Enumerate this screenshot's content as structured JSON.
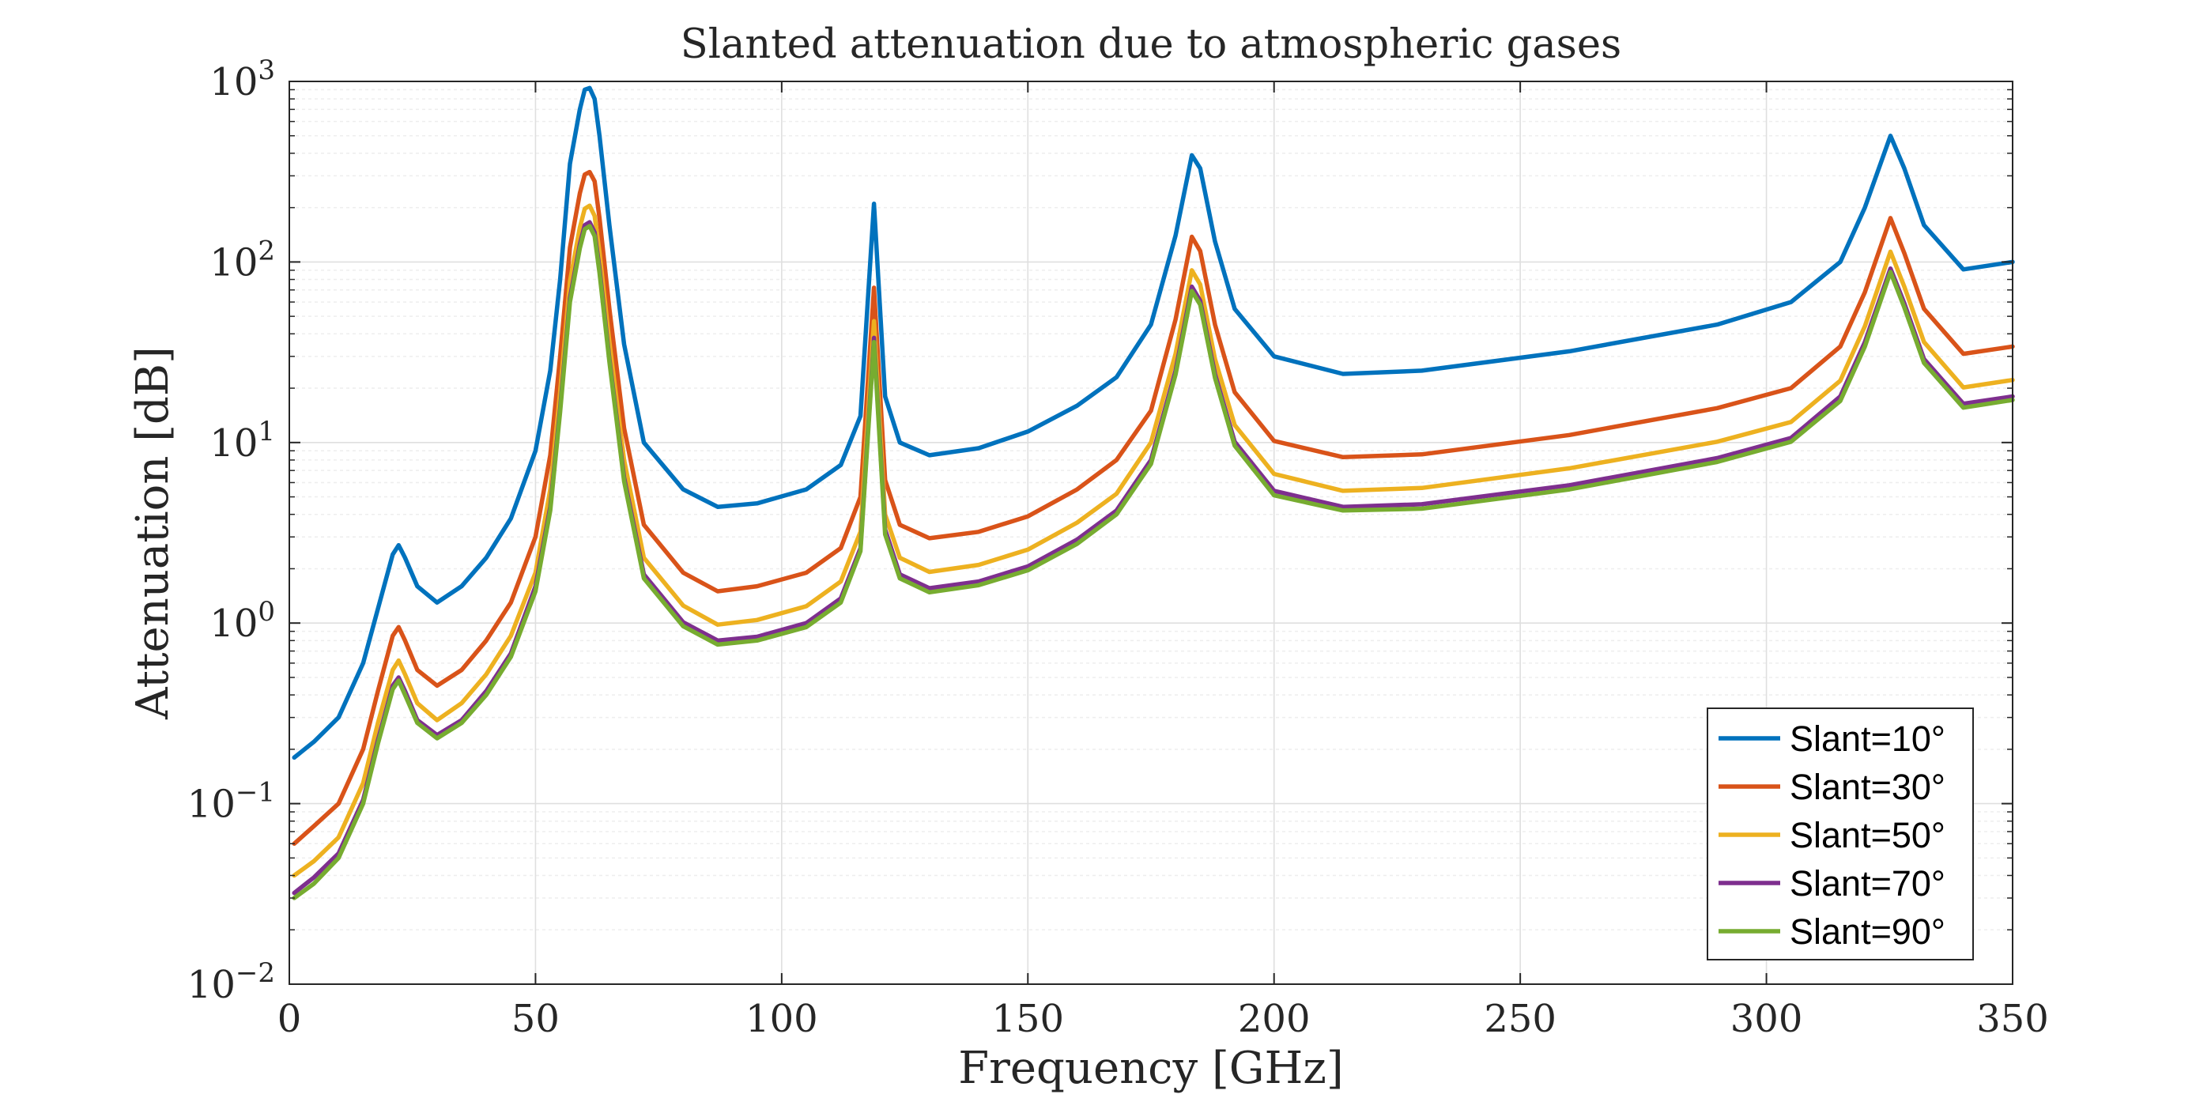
{
  "chart_data": {
    "type": "line",
    "title": "Slanted attenuation due to atmospheric gases",
    "xlabel": "Frequency [GHz]",
    "ylabel": "Attenuation [dB]",
    "xlim": [
      0,
      350
    ],
    "ylim": [
      0.01,
      1000
    ],
    "yscale": "log",
    "grid": true,
    "minor_grid": true,
    "legend_position": "bottom-right",
    "xticks": [
      0,
      50,
      100,
      150,
      200,
      250,
      300,
      350
    ],
    "xtick_labels": [
      "0",
      "50",
      "100",
      "150",
      "200",
      "250",
      "300",
      "350"
    ],
    "yticks": [
      0.01,
      0.1,
      1,
      10,
      100,
      1000
    ],
    "ytick_labels": [
      {
        "base": "10",
        "exp": "−2"
      },
      {
        "base": "10",
        "exp": "−1"
      },
      {
        "base": "10",
        "exp": "0"
      },
      {
        "base": "10",
        "exp": "1"
      },
      {
        "base": "10",
        "exp": "2"
      },
      {
        "base": "10",
        "exp": "3"
      }
    ],
    "x": [
      1,
      5,
      10,
      15,
      18,
      21,
      22.2,
      23.5,
      26,
      30,
      35,
      40,
      45,
      50,
      53,
      55,
      57,
      59,
      60,
      61,
      62,
      63,
      65,
      68,
      72,
      80,
      87,
      95,
      105,
      112,
      116,
      118.75,
      121,
      124,
      130,
      140,
      150,
      160,
      168,
      175,
      180,
      183.3,
      185,
      188,
      192,
      200,
      214,
      230,
      260,
      290,
      305,
      315,
      320,
      325.2,
      328,
      332,
      340,
      350
    ],
    "series": [
      {
        "name": "Slant=10°",
        "color": "#0072BD",
        "values": [
          0.18,
          0.22,
          0.3,
          0.6,
          1.2,
          2.4,
          2.7,
          2.3,
          1.6,
          1.3,
          1.6,
          2.3,
          3.8,
          9,
          25,
          80,
          350,
          700,
          900,
          920,
          800,
          500,
          160,
          35,
          10,
          5.5,
          4.4,
          4.6,
          5.5,
          7.5,
          14,
          210,
          18,
          10,
          8.5,
          9.3,
          11.5,
          16,
          23,
          45,
          140,
          390,
          330,
          130,
          55,
          30,
          24,
          25,
          32,
          45,
          60,
          100,
          200,
          500,
          330,
          160,
          91,
          100
        ]
      },
      {
        "name": "Slant=30°",
        "color": "#D95319",
        "values": [
          0.06,
          0.075,
          0.1,
          0.2,
          0.42,
          0.85,
          0.95,
          0.8,
          0.55,
          0.45,
          0.55,
          0.8,
          1.3,
          3,
          8.5,
          30,
          120,
          240,
          305,
          315,
          280,
          175,
          55,
          12,
          3.5,
          1.9,
          1.5,
          1.6,
          1.9,
          2.6,
          5,
          72,
          6.2,
          3.5,
          2.95,
          3.2,
          3.9,
          5.5,
          8,
          15,
          48,
          138,
          115,
          45,
          19,
          10.2,
          8.3,
          8.6,
          11,
          15.5,
          20,
          34,
          68,
          175,
          112,
          55,
          31,
          34
        ]
      },
      {
        "name": "Slant=50°",
        "color": "#EDB120",
        "values": [
          0.04,
          0.048,
          0.065,
          0.13,
          0.28,
          0.55,
          0.62,
          0.52,
          0.36,
          0.29,
          0.36,
          0.52,
          0.85,
          1.9,
          5.5,
          19,
          78,
          155,
          197,
          205,
          180,
          113,
          36,
          8,
          2.3,
          1.25,
          0.98,
          1.04,
          1.24,
          1.7,
          3.2,
          47,
          4,
          2.3,
          1.92,
          2.1,
          2.55,
          3.6,
          5.2,
          10,
          31,
          90,
          75,
          29,
          12.5,
          6.7,
          5.4,
          5.6,
          7.2,
          10.1,
          13,
          22,
          44,
          114,
          73,
          36,
          20.2,
          22.2
        ]
      },
      {
        "name": "Slant=70°",
        "color": "#7E2F8E",
        "values": [
          0.032,
          0.039,
          0.053,
          0.105,
          0.225,
          0.45,
          0.5,
          0.42,
          0.29,
          0.24,
          0.29,
          0.42,
          0.68,
          1.6,
          4.4,
          15.5,
          63,
          125,
          160,
          166,
          146,
          92,
          29,
          6.4,
          1.86,
          1.01,
          0.8,
          0.84,
          1.0,
          1.37,
          2.6,
          38,
          3.3,
          1.86,
          1.56,
          1.7,
          2.06,
          2.9,
          4.2,
          8,
          25,
          73,
          61,
          24,
          10.1,
          5.4,
          4.4,
          4.55,
          5.8,
          8.2,
          10.6,
          18,
          36,
          92,
          59,
          29,
          16.4,
          18
        ]
      },
      {
        "name": "Slant=90°",
        "color": "#77AC30",
        "values": [
          0.03,
          0.036,
          0.05,
          0.1,
          0.215,
          0.43,
          0.48,
          0.4,
          0.28,
          0.23,
          0.28,
          0.4,
          0.65,
          1.5,
          4.2,
          14.8,
          60,
          119,
          152,
          158,
          139,
          87,
          28,
          6.1,
          1.77,
          0.96,
          0.76,
          0.8,
          0.95,
          1.3,
          2.5,
          36,
          3.1,
          1.77,
          1.48,
          1.62,
          1.96,
          2.75,
          4,
          7.6,
          23.8,
          69,
          58,
          22.8,
          9.6,
          5.1,
          4.2,
          4.3,
          5.5,
          7.8,
          10.1,
          17,
          34,
          88,
          56,
          27.6,
          15.6,
          17.2
        ]
      }
    ]
  },
  "colors": {
    "axis": "#262626",
    "grid": "#dfdfdf",
    "minor_grid": "#eeeeee",
    "background": "#ffffff"
  }
}
